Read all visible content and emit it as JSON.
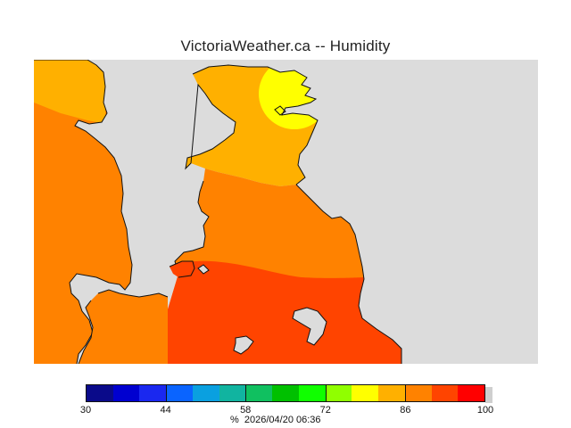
{
  "title": "VictoriaWeather.ca -- Humidity",
  "legend": {
    "colors": [
      "#0a0a8a",
      "#0000d0",
      "#1a28f0",
      "#0a64ff",
      "#0aa0e0",
      "#11b4a0",
      "#10c060",
      "#00c000",
      "#10ff00",
      "#90ff00",
      "#ffff00",
      "#ffb000",
      "#ff8200",
      "#ff4400",
      "#ff0000"
    ],
    "tick_labels": [
      "30",
      "44",
      "58",
      "72",
      "86",
      "100"
    ],
    "tick_values": [
      30,
      44,
      58,
      72,
      86,
      100
    ],
    "min": 30,
    "max": 100
  },
  "footer": {
    "unit": "%",
    "timestamp": "2026/04/20 06:36"
  },
  "map": {
    "land_colors": {
      "zone_80_85": "#ffb000",
      "zone_85_90": "#ff8200",
      "zone_90_95": "#ff4400",
      "zone_peak": "#ffff00",
      "water": "#dcdcdc",
      "coast": "#111111"
    }
  }
}
